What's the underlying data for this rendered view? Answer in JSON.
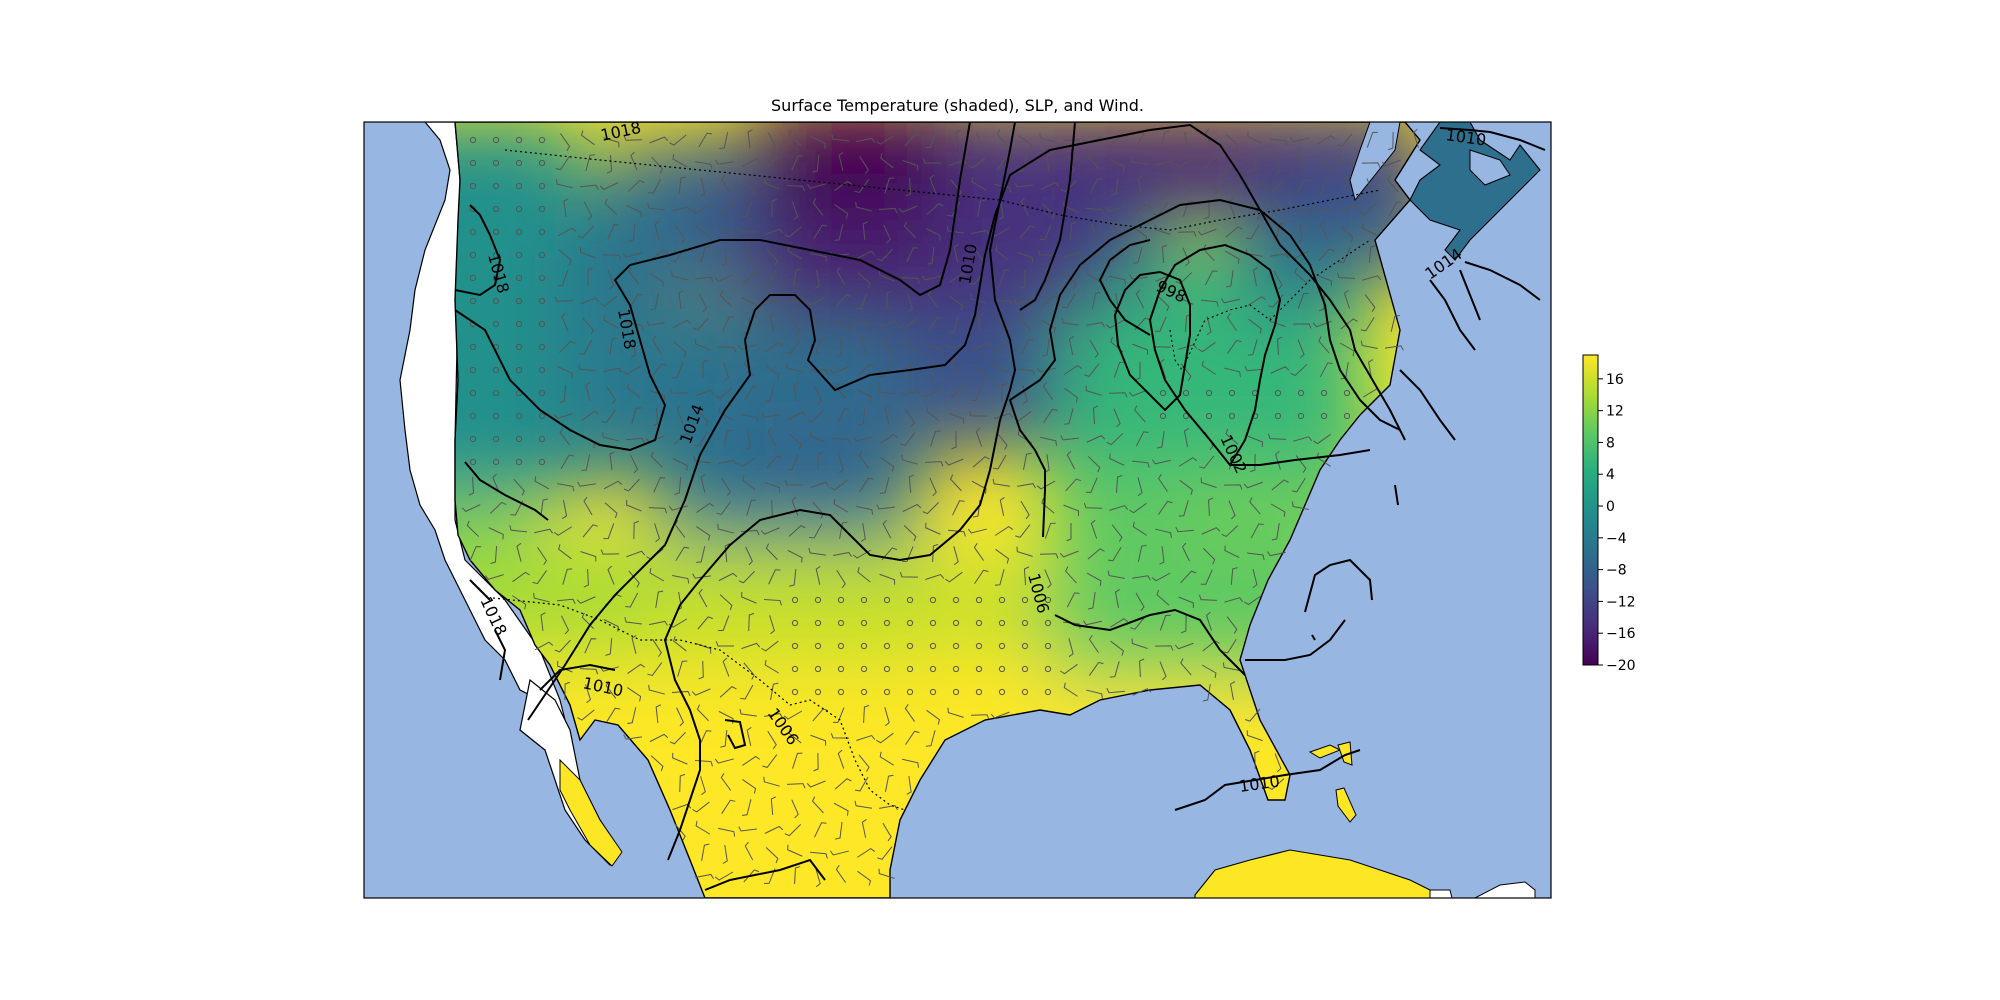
{
  "title": "Surface Temperature (shaded), SLP, and Wind.",
  "colors": {
    "ocean": "#97b6e1",
    "land_nodata": "#ffffff",
    "contour": "#000000",
    "barb": "#555555"
  },
  "colorbar": {
    "colormap": "viridis",
    "range": [
      -20,
      19
    ],
    "ticks": [
      "16",
      "12",
      "8",
      "4",
      "0",
      "−4",
      "−8",
      "−12",
      "−16",
      "−20"
    ],
    "tick_values": [
      16,
      12,
      8,
      4,
      0,
      -4,
      -8,
      -12,
      -16,
      -20
    ]
  },
  "isobar_labels": [
    "1018",
    "1010",
    "1018",
    "1018",
    "1014",
    "1010",
    "998",
    "1014",
    "1002",
    "1018",
    "1010",
    "1006",
    "1006",
    "1010"
  ],
  "legend": "none"
}
